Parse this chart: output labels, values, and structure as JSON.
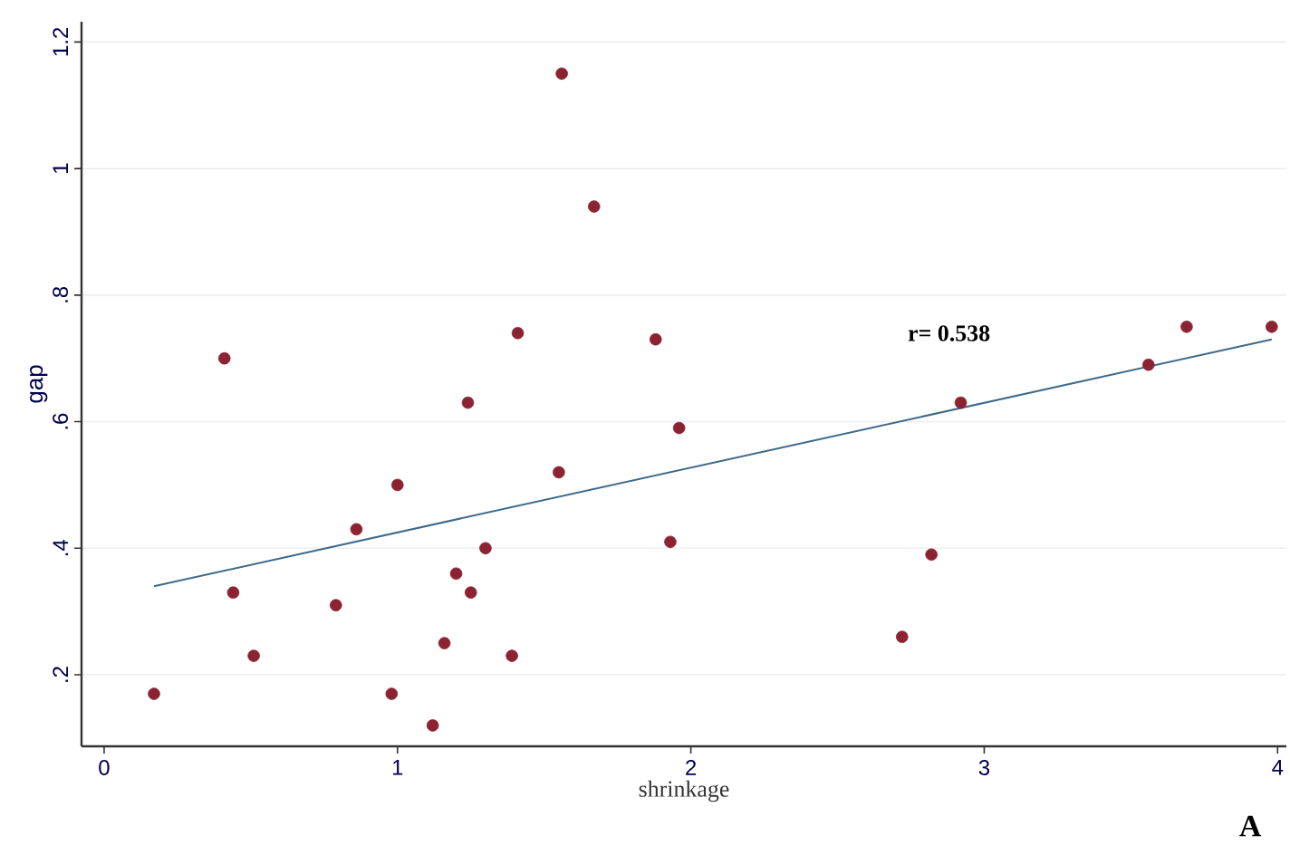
{
  "chart_data": {
    "type": "scatter",
    "xlabel": "shrinkage",
    "ylabel": "gap",
    "annotations": [
      "r= 0.538",
      "A"
    ],
    "xlim": [
      -0.077,
      4.03
    ],
    "ylim": [
      0.087,
      1.232
    ],
    "xticks": [
      0,
      1,
      2,
      3,
      4
    ],
    "yticks": [
      {
        "value": 0.2,
        "label": ".2"
      },
      {
        "value": 0.4,
        "label": ".4"
      },
      {
        "value": 0.6,
        "label": ".6"
      },
      {
        "value": 0.8,
        "label": ".8"
      },
      1,
      1.2
    ],
    "grid": "y",
    "series": [
      {
        "marker": "circle",
        "color": "#8b2332",
        "x": [
          0.41,
          1.24,
          1.41,
          1.56,
          1.67,
          0.17,
          0.44,
          0.51,
          0.79,
          0.86,
          1.0,
          0.98,
          1.12,
          1.16,
          1.2,
          1.25,
          1.3,
          1.39,
          1.55,
          1.88,
          1.96,
          2.92,
          3.56,
          3.69,
          3.98,
          1.93,
          2.72,
          2.82
        ],
        "values": [
          0.7,
          0.63,
          0.74,
          1.15,
          0.94,
          0.17,
          0.33,
          0.23,
          0.31,
          0.43,
          0.5,
          0.17,
          0.12,
          0.25,
          0.36,
          0.33,
          0.4,
          0.23,
          0.52,
          0.73,
          0.59,
          0.63,
          0.69,
          0.75,
          0.75,
          0.41,
          0.26,
          0.39
        ]
      },
      {
        "type": "line",
        "marker": "none",
        "color": "#3e6a8a",
        "x": [
          0.17,
          3.98
        ],
        "values": [
          0.34,
          0.73
        ]
      }
    ]
  }
}
